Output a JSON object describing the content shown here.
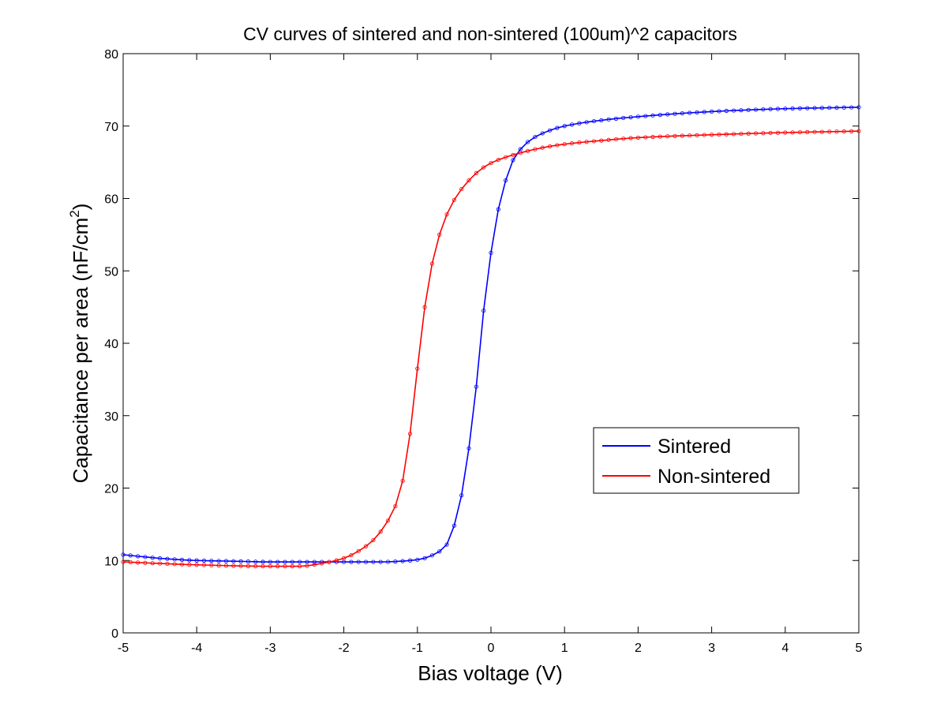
{
  "chart_data": {
    "type": "line",
    "title": "CV curves of sintered and non-sintered (100um)^2 capacitors",
    "xlabel": "Bias voltage (V)",
    "ylabel_main": "Capacitance per area (nF/cm",
    "ylabel_sup": "2",
    "ylabel_close": ")",
    "xlim": [
      -5,
      5
    ],
    "ylim": [
      0,
      80
    ],
    "xticks": [
      -5,
      -4,
      -3,
      -2,
      -1,
      0,
      1,
      2,
      3,
      4,
      5
    ],
    "yticks": [
      0,
      10,
      20,
      30,
      40,
      50,
      60,
      70,
      80
    ],
    "grid": false,
    "marker": "circle",
    "legend_position": "lower-right",
    "series": [
      {
        "name": "Sintered",
        "color": "#0000ff",
        "x": [
          -5.0,
          -4.5,
          -4.0,
          -3.5,
          -3.0,
          -2.5,
          -2.0,
          -1.5,
          -1.0,
          -0.8,
          -0.6,
          -0.5,
          -0.4,
          -0.3,
          -0.2,
          -0.1,
          0.0,
          0.1,
          0.2,
          0.3,
          0.5,
          0.7,
          1.0,
          1.5,
          2.0,
          3.0,
          4.0,
          5.0
        ],
        "y": [
          10.8,
          10.3,
          10.0,
          9.9,
          9.8,
          9.8,
          9.8,
          9.8,
          10.1,
          10.7,
          12.2,
          14.8,
          19.0,
          25.5,
          34.0,
          44.5,
          52.5,
          58.5,
          62.5,
          65.3,
          67.8,
          69.0,
          70.0,
          70.8,
          71.3,
          72.0,
          72.4,
          72.6
        ]
      },
      {
        "name": "Non-sintered",
        "color": "#ff0000",
        "x": [
          -5.0,
          -4.0,
          -3.0,
          -2.6,
          -2.3,
          -2.0,
          -1.8,
          -1.6,
          -1.4,
          -1.3,
          -1.2,
          -1.1,
          -1.0,
          -0.9,
          -0.8,
          -0.7,
          -0.6,
          -0.5,
          -0.4,
          -0.3,
          -0.2,
          -0.1,
          0.0,
          0.2,
          0.4,
          0.6,
          0.8,
          1.0,
          1.5,
          2.0,
          3.0,
          4.0,
          5.0
        ],
        "y": [
          9.8,
          9.4,
          9.2,
          9.2,
          9.6,
          10.3,
          11.3,
          12.8,
          15.5,
          17.5,
          21.0,
          27.5,
          36.5,
          45.0,
          51.0,
          55.0,
          57.8,
          59.8,
          61.3,
          62.5,
          63.5,
          64.3,
          64.9,
          65.7,
          66.3,
          66.8,
          67.2,
          67.5,
          68.0,
          68.4,
          68.8,
          69.1,
          69.3
        ]
      }
    ]
  }
}
